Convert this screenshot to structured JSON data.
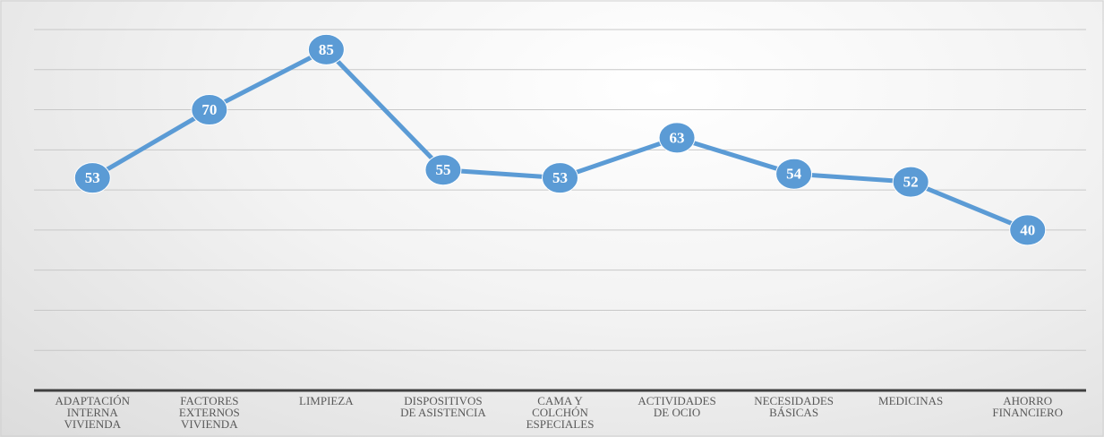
{
  "chart_data": {
    "type": "line",
    "categories": [
      "ADAPTACIÓN\nINTERNA\nVIVIENDA",
      "FACTORES\nEXTERNOS\nVIVIENDA",
      "LIMPIEZA",
      "DISPOSITIVOS\nDE ASISTENCIA",
      "CAMA Y\nCOLCHÓN\nESPECIALES",
      "ACTIVIDADES\nDE OCIO",
      "NECESIDADES\nBÁSICAS",
      "MEDICINAS",
      "AHORRO\nFINANCIERO"
    ],
    "values": [
      53,
      70,
      85,
      55,
      53,
      63,
      54,
      52,
      40
    ],
    "color": "#5b9bd5",
    "ylim": [
      0,
      90
    ],
    "yticks": [
      0,
      10,
      20,
      30,
      40,
      50,
      60,
      70,
      80,
      90
    ],
    "grid": true
  }
}
